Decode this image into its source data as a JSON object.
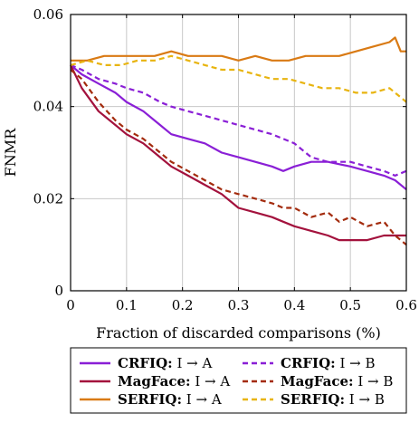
{
  "chart_data": {
    "type": "line",
    "xlabel": "Fraction of discarded comparisons (%)",
    "ylabel": "FNMR",
    "xlim": [
      0,
      0.6
    ],
    "ylim": [
      0,
      0.06
    ],
    "grid": true,
    "legend_position": "bottom",
    "x_ticks": [
      "0",
      "0.1",
      "0.2",
      "0.3",
      "0.4",
      "0.5",
      "0.6"
    ],
    "y_ticks": [
      "0",
      "0.02",
      "0.04",
      "0.06"
    ],
    "series": [
      {
        "name_bold": "CRFIQ:",
        "name_rest": "I → A",
        "color": "#8a1fd6",
        "dash": "solid",
        "x": [
          0,
          0.02,
          0.05,
          0.08,
          0.1,
          0.13,
          0.16,
          0.18,
          0.21,
          0.24,
          0.27,
          0.3,
          0.33,
          0.36,
          0.38,
          0.4,
          0.43,
          0.46,
          0.5,
          0.53,
          0.56,
          0.58,
          0.6
        ],
        "y": [
          0.049,
          0.047,
          0.045,
          0.043,
          0.041,
          0.039,
          0.036,
          0.034,
          0.033,
          0.032,
          0.03,
          0.029,
          0.028,
          0.027,
          0.026,
          0.027,
          0.028,
          0.028,
          0.027,
          0.026,
          0.025,
          0.024,
          0.022
        ]
      },
      {
        "name_bold": "CRFIQ:",
        "name_rest": "I → B",
        "color": "#8a1fd6",
        "dash": "dashed",
        "x": [
          0,
          0.02,
          0.05,
          0.08,
          0.1,
          0.13,
          0.16,
          0.18,
          0.21,
          0.24,
          0.27,
          0.3,
          0.33,
          0.36,
          0.38,
          0.4,
          0.43,
          0.46,
          0.5,
          0.53,
          0.56,
          0.58,
          0.6
        ],
        "y": [
          0.049,
          0.048,
          0.046,
          0.045,
          0.044,
          0.043,
          0.041,
          0.04,
          0.039,
          0.038,
          0.037,
          0.036,
          0.035,
          0.034,
          0.033,
          0.032,
          0.029,
          0.028,
          0.028,
          0.027,
          0.026,
          0.025,
          0.026
        ]
      },
      {
        "name_bold": "MagFace:",
        "name_rest": "I → A",
        "color": "#a3123d",
        "dash": "solid",
        "x": [
          0,
          0.02,
          0.05,
          0.08,
          0.1,
          0.13,
          0.16,
          0.18,
          0.21,
          0.24,
          0.27,
          0.3,
          0.33,
          0.36,
          0.38,
          0.4,
          0.43,
          0.46,
          0.48,
          0.5,
          0.53,
          0.56,
          0.58,
          0.6
        ],
        "y": [
          0.049,
          0.044,
          0.039,
          0.036,
          0.034,
          0.032,
          0.029,
          0.027,
          0.025,
          0.023,
          0.021,
          0.018,
          0.017,
          0.016,
          0.015,
          0.014,
          0.013,
          0.012,
          0.011,
          0.011,
          0.011,
          0.012,
          0.012,
          0.012
        ]
      },
      {
        "name_bold": "MagFace:",
        "name_rest": "I → B",
        "color": "#a32b0d",
        "dash": "dashed",
        "x": [
          0,
          0.02,
          0.05,
          0.08,
          0.1,
          0.13,
          0.16,
          0.18,
          0.21,
          0.24,
          0.27,
          0.3,
          0.33,
          0.36,
          0.38,
          0.4,
          0.43,
          0.46,
          0.48,
          0.5,
          0.53,
          0.56,
          0.58,
          0.6
        ],
        "y": [
          0.048,
          0.046,
          0.041,
          0.037,
          0.035,
          0.033,
          0.03,
          0.028,
          0.026,
          0.024,
          0.022,
          0.021,
          0.02,
          0.019,
          0.018,
          0.018,
          0.016,
          0.017,
          0.015,
          0.016,
          0.014,
          0.015,
          0.012,
          0.01
        ]
      },
      {
        "name_bold": "SERFIQ:",
        "name_rest": "I → A",
        "color": "#d97a14",
        "dash": "solid",
        "x": [
          0,
          0.03,
          0.06,
          0.09,
          0.12,
          0.15,
          0.18,
          0.21,
          0.24,
          0.27,
          0.3,
          0.33,
          0.36,
          0.39,
          0.42,
          0.45,
          0.48,
          0.51,
          0.54,
          0.57,
          0.58,
          0.59,
          0.6
        ],
        "y": [
          0.05,
          0.05,
          0.051,
          0.051,
          0.051,
          0.051,
          0.052,
          0.051,
          0.051,
          0.051,
          0.05,
          0.051,
          0.05,
          0.05,
          0.051,
          0.051,
          0.051,
          0.052,
          0.053,
          0.054,
          0.055,
          0.052,
          0.052
        ]
      },
      {
        "name_bold": "SERFIQ:",
        "name_rest": "I → B",
        "color": "#e8b40f",
        "dash": "dashed",
        "x": [
          0,
          0.03,
          0.06,
          0.09,
          0.12,
          0.15,
          0.18,
          0.21,
          0.24,
          0.27,
          0.3,
          0.33,
          0.36,
          0.39,
          0.42,
          0.45,
          0.48,
          0.51,
          0.54,
          0.57,
          0.58,
          0.59,
          0.6
        ],
        "y": [
          0.049,
          0.05,
          0.049,
          0.049,
          0.05,
          0.05,
          0.051,
          0.05,
          0.049,
          0.048,
          0.048,
          0.047,
          0.046,
          0.046,
          0.045,
          0.044,
          0.044,
          0.043,
          0.043,
          0.044,
          0.043,
          0.042,
          0.041
        ]
      }
    ]
  }
}
